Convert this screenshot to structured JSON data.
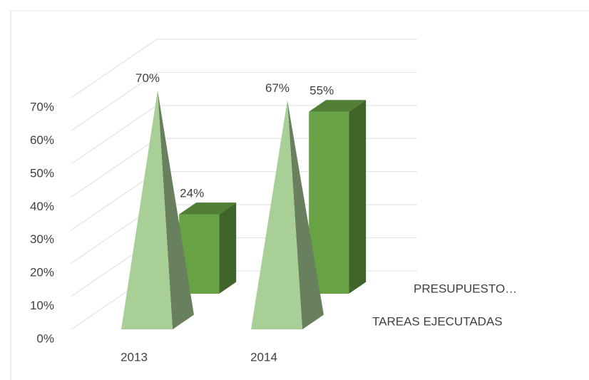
{
  "chart_data": {
    "type": "bar3d",
    "categories": [
      "2013",
      "2014"
    ],
    "series": [
      {
        "name": "TAREAS EJECUTADAS",
        "color": "#a8cf96",
        "shape": "pyramid",
        "values": [
          70,
          67
        ],
        "value_labels": [
          "70%",
          "67%"
        ]
      },
      {
        "name": "PRESUPUESTO…",
        "color": "#67a244",
        "shape": "box",
        "values": [
          24,
          55
        ],
        "value_labels": [
          "24%",
          "55%"
        ]
      }
    ],
    "ylim": [
      0,
      70
    ],
    "yticks": [
      {
        "value": 0,
        "label": "0%"
      },
      {
        "value": 10,
        "label": "10%"
      },
      {
        "value": 20,
        "label": "20%"
      },
      {
        "value": 30,
        "label": "30%"
      },
      {
        "value": 40,
        "label": "40%"
      },
      {
        "value": 50,
        "label": "50%"
      },
      {
        "value": 60,
        "label": "60%"
      },
      {
        "value": 70,
        "label": "70%"
      }
    ],
    "grid": true
  }
}
